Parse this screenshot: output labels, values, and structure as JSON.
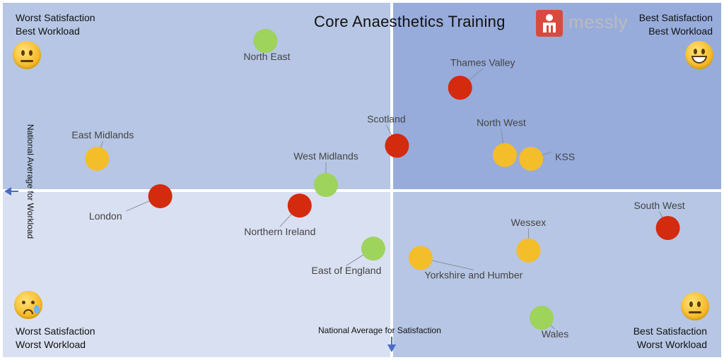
{
  "title": "Core Anaesthetics Training",
  "logo": {
    "text": "messly",
    "color": "#d94a3e",
    "icon": "messly-logo-icon"
  },
  "corners": {
    "top_left": [
      "Worst Satisfaction",
      "Best Workload"
    ],
    "top_right": [
      "Best Satisfaction",
      "Best Workload"
    ],
    "bottom_left": [
      "Worst Satisfaction",
      "Worst Workload"
    ],
    "bottom_right": [
      "Best Satisfaction",
      "Worst Workload"
    ]
  },
  "axes": {
    "x_label": "National Average for Satisfaction",
    "y_label": "National Average for Workload"
  },
  "colors": {
    "red": "#d42a0e",
    "amber": "#f4bd2a",
    "green": "#9ed35c",
    "q_top_left": "#b6c6e4",
    "q_top_right": "#97acdb",
    "q_bottom_left": "#d9e0f1",
    "q_bottom_right": "#b6c6e4"
  },
  "chart_data": {
    "type": "scatter",
    "title": "Core Anaesthetics Training",
    "xlabel": "National Average for Satisfaction",
    "ylabel": "National Average for Workload",
    "points": [
      {
        "label": "North East",
        "x": -0.48,
        "y": 0.8,
        "rag": "green"
      },
      {
        "label": "Thames Valley",
        "x": 0.26,
        "y": 0.55,
        "rag": "red"
      },
      {
        "label": "East Midlands",
        "x": -1.12,
        "y": 0.17,
        "rag": "amber"
      },
      {
        "label": "Scotland",
        "x": 0.02,
        "y": 0.24,
        "rag": "red"
      },
      {
        "label": "North West",
        "x": 0.43,
        "y": 0.19,
        "rag": "amber"
      },
      {
        "label": "KSS",
        "x": 0.53,
        "y": 0.17,
        "rag": "amber"
      },
      {
        "label": "West Midlands",
        "x": -0.25,
        "y": 0.03,
        "rag": "green"
      },
      {
        "label": "London",
        "x": -0.88,
        "y": -0.03,
        "rag": "red"
      },
      {
        "label": "Northern Ireland",
        "x": -0.35,
        "y": -0.08,
        "rag": "red"
      },
      {
        "label": "South West",
        "x": 1.05,
        "y": -0.2,
        "rag": "red"
      },
      {
        "label": "Wessex",
        "x": 0.52,
        "y": -0.32,
        "rag": "amber"
      },
      {
        "label": "East of England",
        "x": -0.07,
        "y": -0.31,
        "rag": "green"
      },
      {
        "label": "Yorkshire and Humber",
        "x": 0.11,
        "y": -0.36,
        "rag": "amber"
      },
      {
        "label": "Wales",
        "x": 0.57,
        "y": -0.68,
        "rag": "green"
      }
    ]
  }
}
